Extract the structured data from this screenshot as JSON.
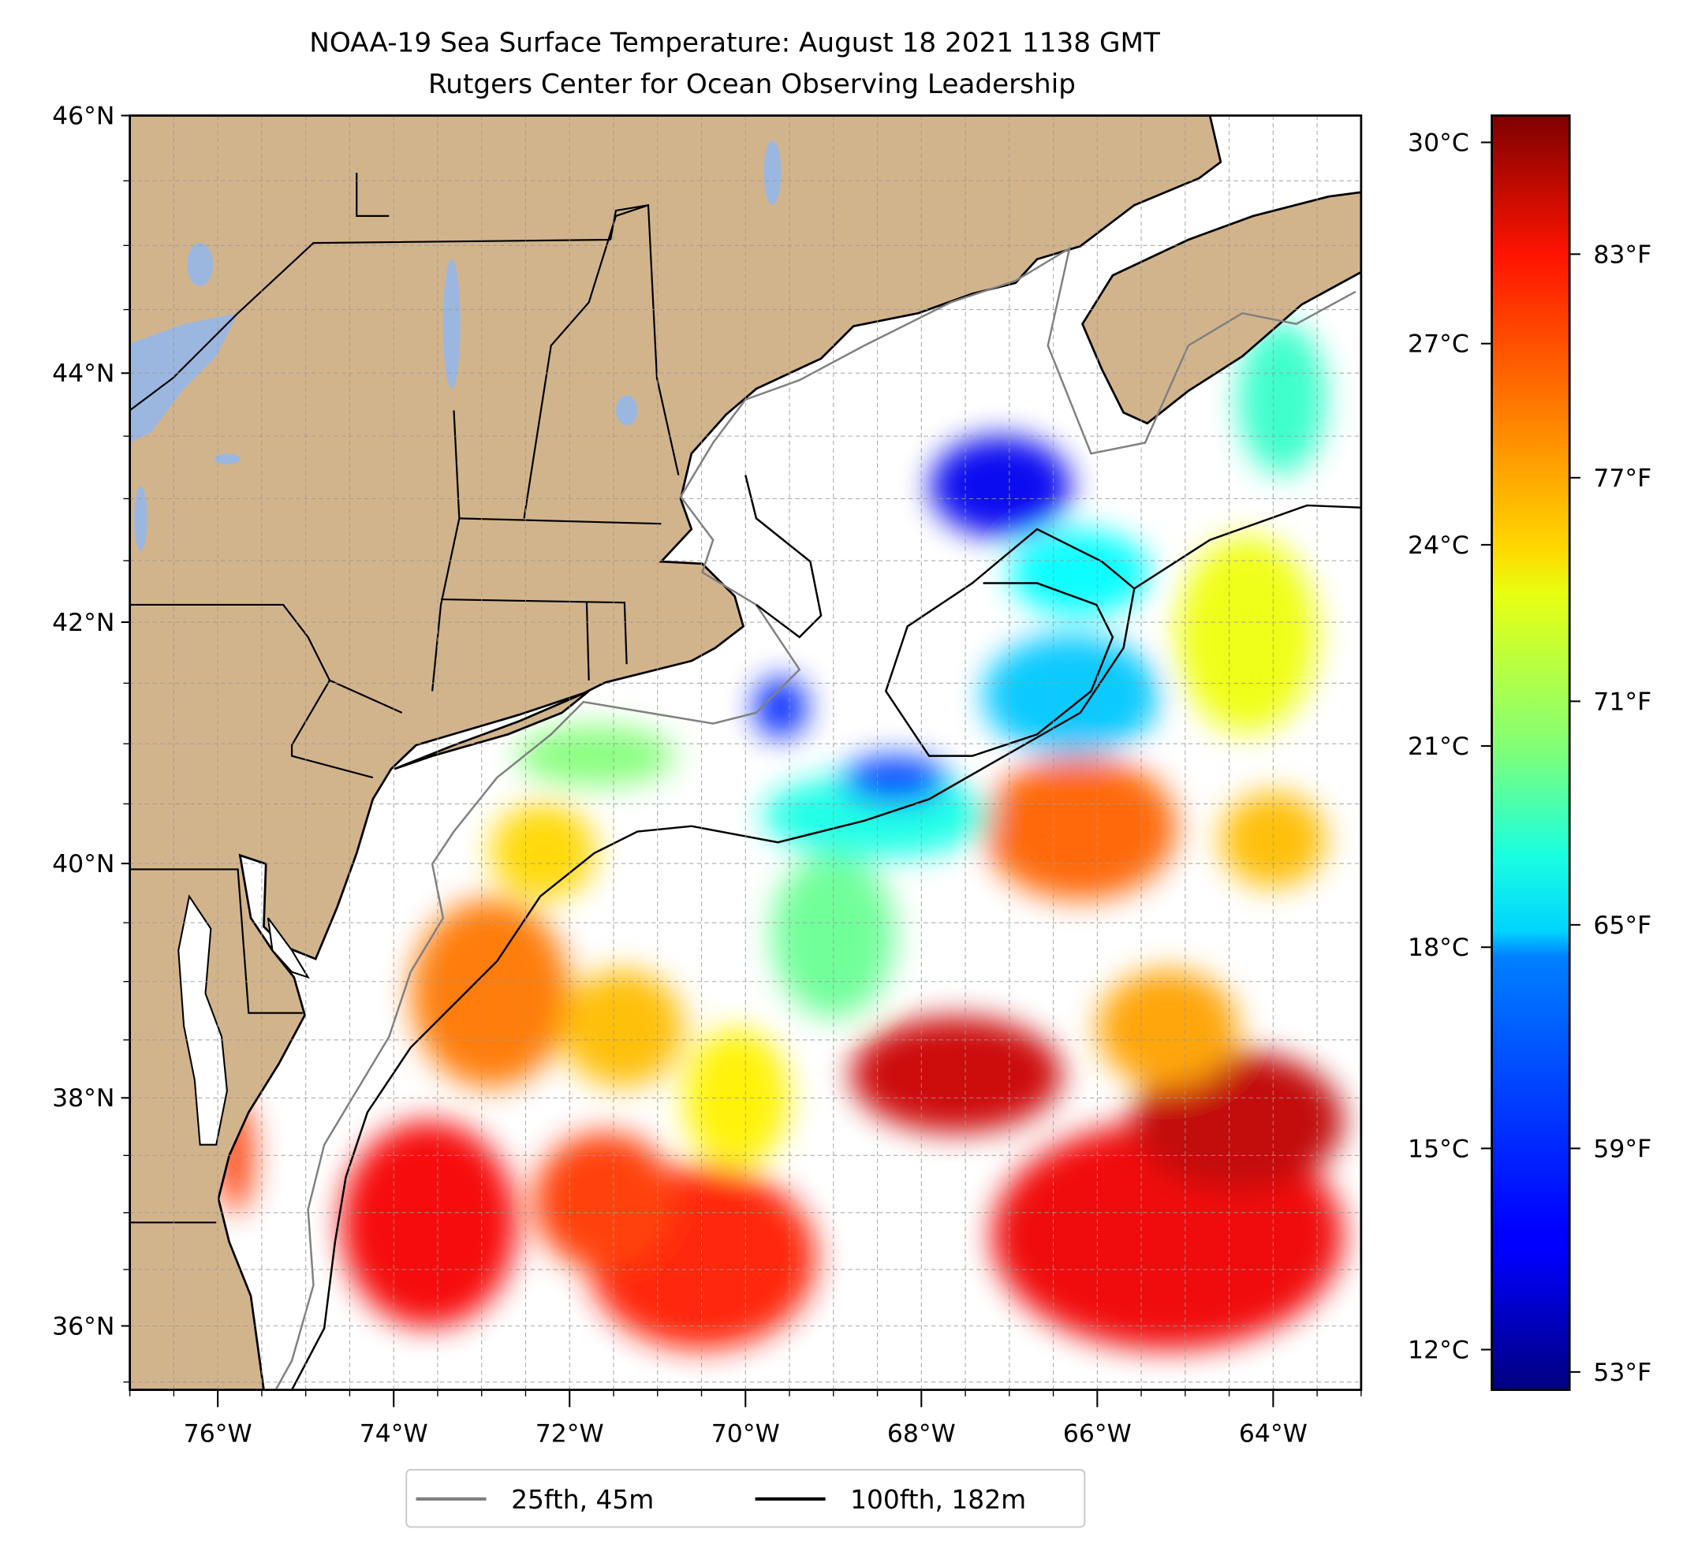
{
  "chart_data": {
    "type": "heatmap",
    "title": "NOAA-19 Sea Surface Temperature: August 18 2021 1138 GMT",
    "subtitle": "Rutgers Center for Ocean Observing Leadership",
    "projection": "mercator",
    "lon_range": [
      -77.0,
      -63.0
    ],
    "lat_range": [
      35.43,
      46.0
    ],
    "grid": true,
    "x_ticks": [
      {
        "value": -76,
        "label": "76°W"
      },
      {
        "value": -74,
        "label": "74°W"
      },
      {
        "value": -72,
        "label": "72°W"
      },
      {
        "value": -70,
        "label": "70°W"
      },
      {
        "value": -68,
        "label": "68°W"
      },
      {
        "value": -66,
        "label": "66°W"
      },
      {
        "value": -64,
        "label": "64°W"
      }
    ],
    "y_ticks": [
      {
        "value": 36,
        "label": "36°N"
      },
      {
        "value": 38,
        "label": "38°N"
      },
      {
        "value": 40,
        "label": "40°N"
      },
      {
        "value": 42,
        "label": "42°N"
      },
      {
        "value": 44,
        "label": "44°N"
      },
      {
        "value": 46,
        "label": "46°N"
      }
    ],
    "colorbar": {
      "colormap": "jet",
      "range_c": [
        11.4,
        30.4
      ],
      "ticks_c": [
        {
          "value": 12,
          "label": "12°C"
        },
        {
          "value": 15,
          "label": "15°C"
        },
        {
          "value": 18,
          "label": "18°C"
        },
        {
          "value": 21,
          "label": "21°C"
        },
        {
          "value": 24,
          "label": "24°C"
        },
        {
          "value": 27,
          "label": "27°C"
        },
        {
          "value": 30,
          "label": "30°C"
        }
      ],
      "ticks_f": [
        {
          "value": 53,
          "label": "53°F"
        },
        {
          "value": 59,
          "label": "59°F"
        },
        {
          "value": 65,
          "label": "65°F"
        },
        {
          "value": 71,
          "label": "71°F"
        },
        {
          "value": 77,
          "label": "77°F"
        },
        {
          "value": 83,
          "label": "83°F"
        }
      ]
    },
    "legend": {
      "placement": "bottom-center",
      "entries": [
        {
          "label": "25fth, 45m",
          "color": "#808080"
        },
        {
          "label": "100fth, 182m",
          "color": "#000000"
        }
      ]
    },
    "sst_regions": [
      {
        "lon": -65.2,
        "lat": 36.8,
        "rlon": 2.0,
        "rlat": 1.0,
        "temp_c": 28.3
      },
      {
        "lon": -67.6,
        "lat": 38.2,
        "rlon": 1.2,
        "rlat": 0.5,
        "temp_c": 29.0
      },
      {
        "lon": -64.4,
        "lat": 37.8,
        "rlon": 1.2,
        "rlat": 0.6,
        "temp_c": 29.2
      },
      {
        "lon": -70.5,
        "lat": 36.6,
        "rlon": 1.3,
        "rlat": 0.8,
        "temp_c": 27.5
      },
      {
        "lon": -73.6,
        "lat": 36.9,
        "rlon": 1.0,
        "rlat": 0.9,
        "temp_c": 28.2
      },
      {
        "lon": -71.6,
        "lat": 37.1,
        "rlon": 0.8,
        "rlat": 0.6,
        "temp_c": 27.0
      },
      {
        "lon": -72.9,
        "lat": 38.9,
        "rlon": 0.9,
        "rlat": 0.8,
        "temp_c": 25.8
      },
      {
        "lon": -71.4,
        "lat": 38.6,
        "rlon": 0.7,
        "rlat": 0.5,
        "temp_c": 24.5
      },
      {
        "lon": -70.1,
        "lat": 38.0,
        "rlon": 0.6,
        "rlat": 0.6,
        "temp_c": 23.5
      },
      {
        "lon": -66.2,
        "lat": 40.3,
        "rlon": 1.1,
        "rlat": 0.6,
        "temp_c": 26.2
      },
      {
        "lon": -65.2,
        "lat": 38.6,
        "rlon": 0.8,
        "rlat": 0.5,
        "temp_c": 25.0
      },
      {
        "lon": -64.0,
        "lat": 40.2,
        "rlon": 0.6,
        "rlat": 0.4,
        "temp_c": 24.5
      },
      {
        "lon": -69.0,
        "lat": 39.4,
        "rlon": 0.7,
        "rlat": 0.7,
        "temp_c": 20.5
      },
      {
        "lon": -68.5,
        "lat": 40.4,
        "rlon": 1.3,
        "rlat": 0.35,
        "temp_c": 19.0
      },
      {
        "lon": -68.3,
        "lat": 40.7,
        "rlon": 0.6,
        "rlat": 0.2,
        "temp_c": 15.0
      },
      {
        "lon": -66.3,
        "lat": 41.4,
        "rlon": 1.0,
        "rlat": 0.5,
        "temp_c": 17.5
      },
      {
        "lon": -66.2,
        "lat": 42.4,
        "rlon": 0.8,
        "rlat": 0.35,
        "temp_c": 18.5
      },
      {
        "lon": -64.3,
        "lat": 41.9,
        "rlon": 0.8,
        "rlat": 0.8,
        "temp_c": 23.0
      },
      {
        "lon": -63.9,
        "lat": 43.8,
        "rlon": 0.5,
        "rlat": 0.6,
        "temp_c": 19.5
      },
      {
        "lon": -67.1,
        "lat": 43.1,
        "rlon": 0.8,
        "rlat": 0.4,
        "temp_c": 13.5
      },
      {
        "lon": -71.7,
        "lat": 40.9,
        "rlon": 0.9,
        "rlat": 0.25,
        "temp_c": 21.0
      },
      {
        "lon": -72.3,
        "lat": 40.1,
        "rlon": 0.6,
        "rlat": 0.4,
        "temp_c": 24.0
      },
      {
        "lon": -69.6,
        "lat": 41.3,
        "rlon": 0.3,
        "rlat": 0.25,
        "temp_c": 14.5
      },
      {
        "lon": -75.8,
        "lat": 37.5,
        "rlon": 0.2,
        "rlat": 0.5,
        "temp_c": 27.0
      }
    ]
  }
}
